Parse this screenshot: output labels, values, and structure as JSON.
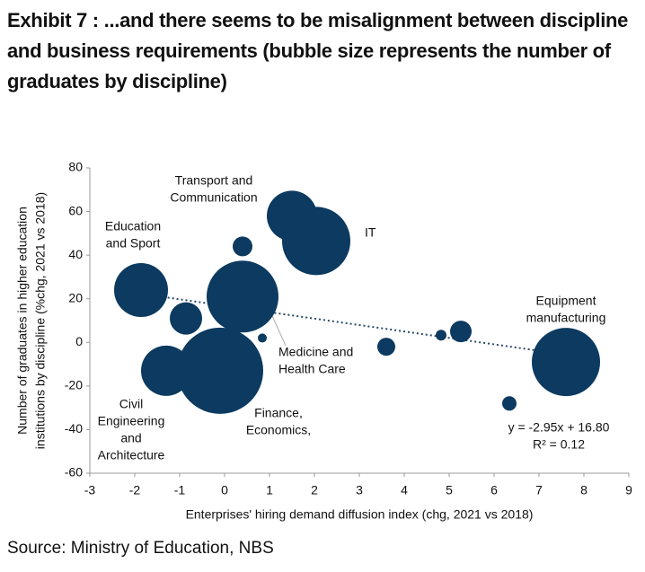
{
  "chart_data": {
    "type": "scatter",
    "title": "Exhibit 7 : ...and there seems to be misalignment between discipline and business requirements (bubble size represents the number of graduates by discipline)",
    "x_label": "Enterprises' hiring demand diffusion index (chg, 2021 vs 2018)",
    "y_label": [
      "Number of graduates in higher education",
      "institutions by discipline (%chg, 2021 vs 2018)"
    ],
    "source": "Source: Ministry of Education, NBS",
    "xlim": [
      -3,
      9
    ],
    "xticks": [
      -3,
      -2,
      -1,
      0,
      1,
      2,
      3,
      4,
      5,
      6,
      7,
      8,
      9
    ],
    "ylim": [
      -60,
      80
    ],
    "yticks": [
      -60,
      -40,
      -20,
      0,
      20,
      40,
      60,
      80
    ],
    "color": "#0c3a60",
    "x": [
      1.5,
      2.04,
      -1.86,
      -0.86,
      0.4,
      0.4,
      0.84,
      -1.3,
      -0.1,
      3.6,
      4.82,
      5.26,
      7.6,
      6.34
    ],
    "y": [
      58,
      46.5,
      24,
      11,
      21,
      44,
      2,
      -13,
      -13,
      -2,
      3.3,
      5,
      -9,
      -28
    ],
    "sizes": [
      784,
      1444,
      900,
      324,
      1600,
      121,
      25,
      784,
      2304,
      100,
      36,
      144,
      1444,
      64
    ],
    "trendline": {
      "slope": -2.95,
      "intercept": 16.8,
      "label": "y = -2.95x + 16.80",
      "r2_label": "R² = 0.12"
    },
    "annotations": [
      {
        "lines": [
          "Transport and",
          "Communication"
        ]
      },
      {
        "lines": [
          "IT"
        ]
      },
      {
        "lines": [
          "Education",
          "and Sport"
        ]
      },
      {
        "lines": [
          "Medicine and",
          "Health Care"
        ]
      },
      {
        "lines": [
          "Civil",
          "Engineering",
          "and",
          "Architecture"
        ]
      },
      {
        "lines": [
          "Finance,",
          "Economics,"
        ]
      },
      {
        "lines": [
          "Equipment",
          "manufacturing"
        ]
      }
    ]
  }
}
